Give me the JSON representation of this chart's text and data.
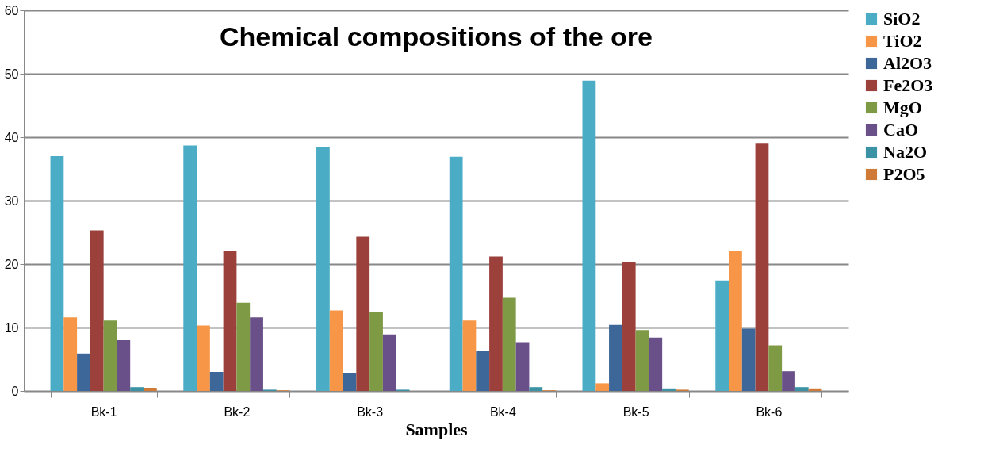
{
  "chart_data": {
    "type": "bar",
    "title": "Chemical compositions of the ore",
    "xlabel": "Samples",
    "categories": [
      "Bk-1",
      "Bk-2",
      "Bk-3",
      "Bk-4",
      "Bk-5",
      "Bk-6"
    ],
    "series": [
      {
        "name": "SiO2",
        "color": "#4bacc6",
        "values": [
          37.0,
          38.7,
          38.5,
          36.9,
          48.9,
          17.4
        ]
      },
      {
        "name": "TiO2",
        "color": "#f79646",
        "values": [
          11.6,
          10.3,
          12.7,
          11.1,
          1.2,
          22.1
        ]
      },
      {
        "name": "Al2O3",
        "color": "#3e6799",
        "values": [
          5.9,
          3.0,
          2.8,
          6.3,
          10.4,
          9.8
        ]
      },
      {
        "name": "Fe2O3",
        "color": "#9c403c",
        "values": [
          25.3,
          22.1,
          24.3,
          21.2,
          20.3,
          39.1
        ]
      },
      {
        "name": "MgO",
        "color": "#7f9a45",
        "values": [
          11.1,
          13.9,
          12.5,
          14.7,
          9.6,
          7.2
        ]
      },
      {
        "name": "CaO",
        "color": "#6a5088",
        "values": [
          8.0,
          11.6,
          8.9,
          7.7,
          8.4,
          3.1
        ]
      },
      {
        "name": "Na2O",
        "color": "#3b92a5",
        "values": [
          0.6,
          0.2,
          0.2,
          0.6,
          0.4,
          0.6
        ]
      },
      {
        "name": "P2O5",
        "color": "#d07a38",
        "values": [
          0.5,
          0.1,
          0.0,
          0.1,
          0.2,
          0.4
        ]
      }
    ],
    "ylim": [
      0,
      60
    ],
    "yticks": [
      0,
      10,
      20,
      30,
      40,
      50,
      60
    ],
    "grid": "y",
    "legend": "right"
  }
}
